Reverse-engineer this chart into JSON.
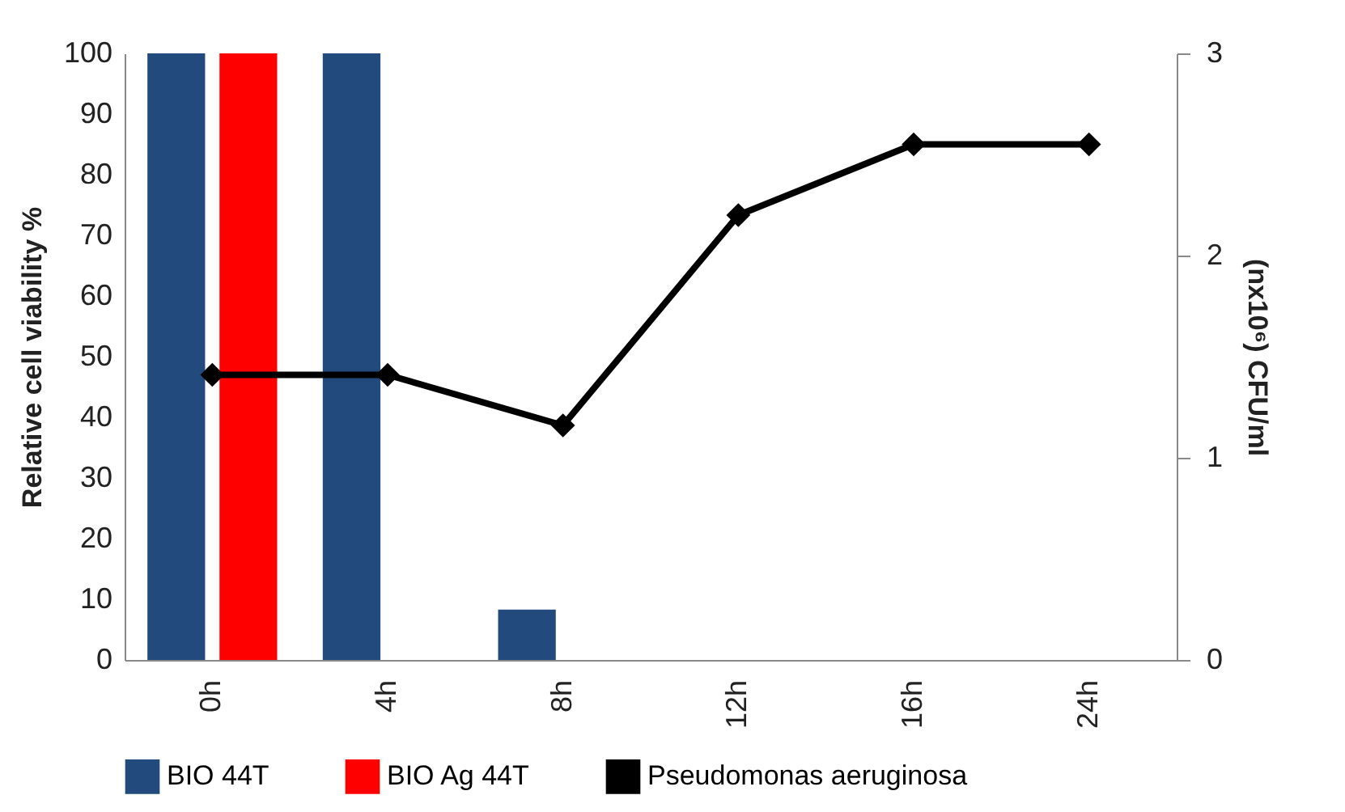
{
  "chart_data": {
    "type": "bar",
    "categories": [
      "0h",
      "4h",
      "8h",
      "12h",
      "16h",
      "24h"
    ],
    "ylabel": "Relative cell viability %",
    "y2label": "(nx10⁶) CFU/ml",
    "ylim": [
      0,
      100
    ],
    "yticks": [
      0,
      10,
      20,
      30,
      40,
      50,
      60,
      70,
      80,
      90,
      100
    ],
    "y2lim": [
      0,
      3
    ],
    "y2ticks": [
      0,
      1,
      2,
      3
    ],
    "grid": false,
    "legend": "bottom",
    "series": [
      {
        "name": "BIO 44T",
        "color": "#234a7c",
        "values": [
          100,
          100,
          8.3,
          0,
          0,
          0
        ]
      },
      {
        "name": "BIO Ag 44T",
        "color": "#ff0000",
        "values": [
          100,
          0,
          0,
          0,
          0,
          0
        ]
      },
      {
        "name": "Pseudomonas aeruginosa",
        "type": "line",
        "axis": "y2",
        "marker": "diamond",
        "line_style": "solid",
        "color": "#000000",
        "values": [
          1.41,
          1.41,
          1.16,
          2.2,
          2.55,
          2.55
        ]
      }
    ]
  }
}
